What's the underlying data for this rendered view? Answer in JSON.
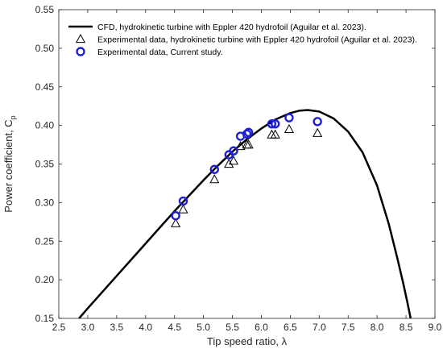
{
  "chart_data": {
    "type": "line",
    "xlabel": "Tip speed ratio, λ",
    "ylabel": "Power coefficient, C",
    "ylabel_subscript": "p",
    "xlim": [
      2.5,
      9.0
    ],
    "ylim": [
      0.15,
      0.55
    ],
    "xticks": [
      "2.5",
      "3.0",
      "3.5",
      "4.0",
      "4.5",
      "5.0",
      "5.5",
      "6.0",
      "6.5",
      "7.0",
      "7.5",
      "8.0",
      "8.5",
      "9.0"
    ],
    "yticks": [
      "0.15",
      "0.20",
      "0.25",
      "0.30",
      "0.35",
      "0.40",
      "0.45",
      "0.50",
      "0.55"
    ],
    "grid": false,
    "legend_position": "top-left",
    "series": [
      {
        "name": "CFD, hydrokinetic turbine with Eppler 420 hydrofoil (Aguilar et al. 2023).",
        "kind": "line",
        "color": "#000000",
        "x": [
          2.85,
          3.0,
          3.25,
          3.5,
          3.75,
          4.0,
          4.25,
          4.5,
          4.75,
          5.0,
          5.25,
          5.5,
          5.75,
          6.0,
          6.25,
          6.5,
          6.65,
          6.8,
          7.0,
          7.25,
          7.5,
          7.75,
          8.0,
          8.2,
          8.35,
          8.45,
          8.52,
          8.58
        ],
        "y": [
          0.15,
          0.163,
          0.184,
          0.205,
          0.226,
          0.247,
          0.268,
          0.289,
          0.309,
          0.329,
          0.348,
          0.366,
          0.382,
          0.396,
          0.408,
          0.416,
          0.419,
          0.42,
          0.418,
          0.409,
          0.392,
          0.365,
          0.322,
          0.273,
          0.228,
          0.196,
          0.172,
          0.15
        ]
      },
      {
        "name": "Experimental data, hydrokinetic turbine with Eppler 420 hydrofoil (Aguilar et al. 2023).",
        "kind": "marker-triangle",
        "color": "#000000",
        "x": [
          4.52,
          4.65,
          5.19,
          5.44,
          5.52,
          5.64,
          5.75,
          5.78,
          6.18,
          6.24,
          6.48,
          6.97
        ],
        "y": [
          0.273,
          0.291,
          0.33,
          0.35,
          0.354,
          0.373,
          0.375,
          0.375,
          0.388,
          0.388,
          0.395,
          0.39
        ]
      },
      {
        "name": "Experimental data, Current study.",
        "kind": "marker-circle",
        "color": "#1f1fd6",
        "x": [
          4.52,
          4.65,
          5.19,
          5.44,
          5.52,
          5.64,
          5.75,
          5.78,
          6.18,
          6.24,
          6.48,
          6.97
        ],
        "y": [
          0.283,
          0.302,
          0.343,
          0.362,
          0.367,
          0.386,
          0.389,
          0.391,
          0.402,
          0.402,
          0.41,
          0.405
        ]
      }
    ]
  }
}
